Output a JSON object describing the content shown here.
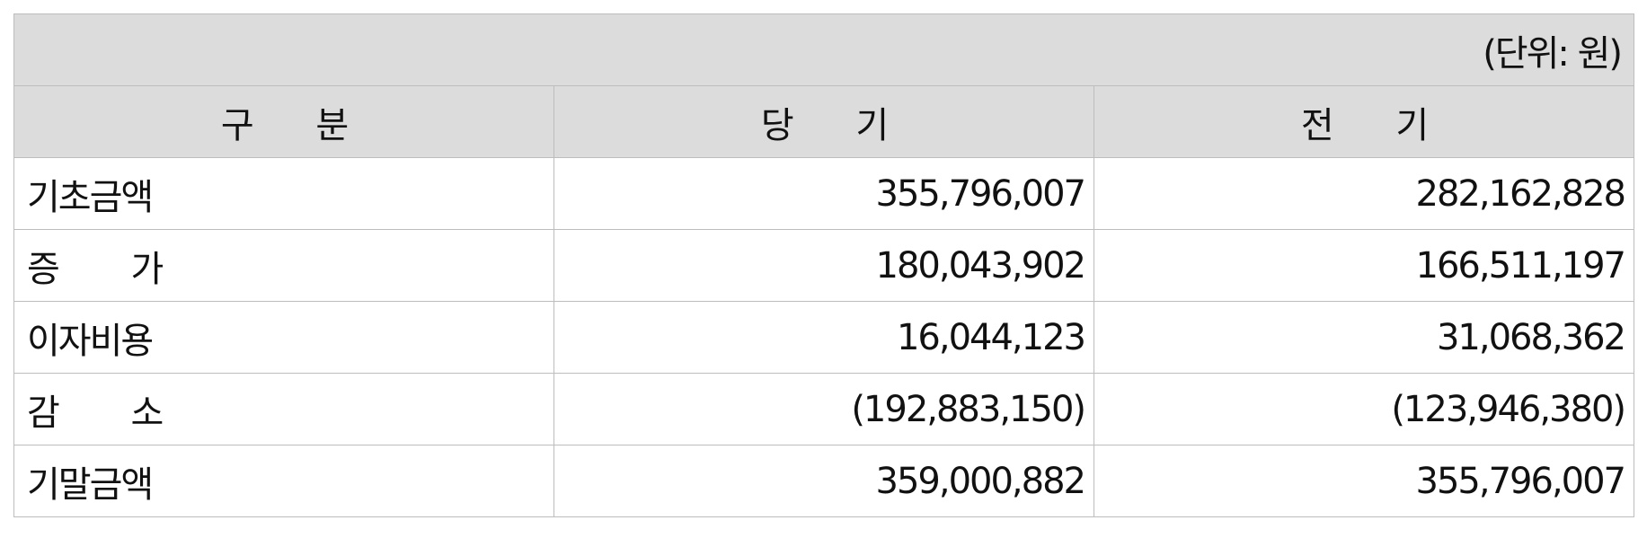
{
  "table": {
    "unit": "(단위: 원)",
    "headers": [
      "구  분",
      "당  기",
      "전  기"
    ],
    "rows": [
      {
        "label": "기초금액",
        "current": "355,796,007",
        "prior": "282,162,828"
      },
      {
        "label": "증   가",
        "current": "180,043,902",
        "prior": "166,511,197"
      },
      {
        "label": "이자비용",
        "current": "16,044,123",
        "prior": "31,068,362"
      },
      {
        "label": "감   소",
        "current": "(192,883,150)",
        "prior": "(123,946,380)"
      },
      {
        "label": "기말금액",
        "current": "359,000,882",
        "prior": "355,796,007"
      }
    ]
  }
}
